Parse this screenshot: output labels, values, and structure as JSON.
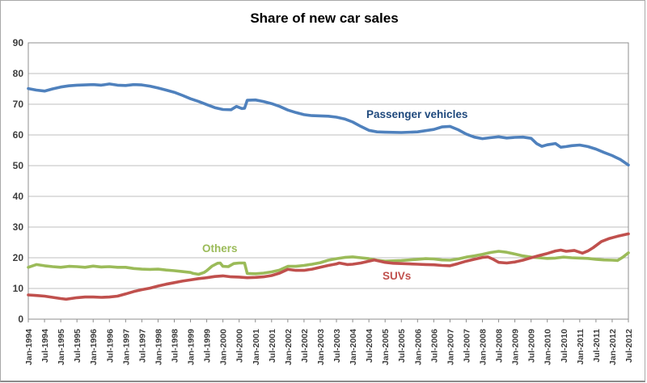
{
  "chart_data": {
    "type": "line",
    "title": "Share of new car sales",
    "xlabel": "",
    "ylabel": "",
    "ylim": [
      0,
      90
    ],
    "y_ticks": [
      0,
      10,
      20,
      30,
      40,
      50,
      60,
      70,
      80,
      90
    ],
    "grid": true,
    "x_unit": "months since Jan-1994",
    "x_range_months": [
      0,
      222
    ],
    "x_tick_step_months": 6,
    "x_tick_labels": [
      "Jan-1994",
      "Jul-1994",
      "Jan-1995",
      "Jul-1995",
      "Jan-1996",
      "Jul-1996",
      "Jan-1997",
      "Jul-1997",
      "Jan-1998",
      "Jul-1998",
      "Jan-1999",
      "Jul-1999",
      "Jan-2000",
      "Jul-2000",
      "Jan-2001",
      "Jul-2001",
      "Jan-2002",
      "Jul-2002",
      "Jan-2003",
      "Jul-2003",
      "Jan-2004",
      "Jul-2004",
      "Jan-2005",
      "Jul-2005",
      "Jan-2006",
      "Jul-2006",
      "Jan-2007",
      "Jul-2007",
      "Jan-2008",
      "Jul-2008",
      "Jan-2009",
      "Jul-2009",
      "Jan-2010",
      "Jul-2010",
      "Jan-2011",
      "Jul-2011",
      "Jan-2012",
      "Jul-2012"
    ],
    "legend_position": "inline-labels-on-chart",
    "series": [
      {
        "name": "Passenger vehicles",
        "color": "#4F81BD",
        "label_color": "#1F497D",
        "points": [
          [
            0,
            75.1
          ],
          [
            3,
            74.6
          ],
          [
            6,
            74.3
          ],
          [
            9,
            75.0
          ],
          [
            12,
            75.6
          ],
          [
            15,
            76.0
          ],
          [
            18,
            76.2
          ],
          [
            21,
            76.3
          ],
          [
            24,
            76.4
          ],
          [
            27,
            76.2
          ],
          [
            30,
            76.6
          ],
          [
            33,
            76.2
          ],
          [
            36,
            76.1
          ],
          [
            39,
            76.4
          ],
          [
            42,
            76.3
          ],
          [
            45,
            75.9
          ],
          [
            48,
            75.3
          ],
          [
            51,
            74.6
          ],
          [
            54,
            73.9
          ],
          [
            57,
            72.9
          ],
          [
            60,
            71.8
          ],
          [
            63,
            70.9
          ],
          [
            66,
            69.9
          ],
          [
            69,
            68.9
          ],
          [
            72,
            68.3
          ],
          [
            75,
            68.2
          ],
          [
            77,
            69.3
          ],
          [
            79,
            68.6
          ],
          [
            80,
            68.7
          ],
          [
            81,
            71.3
          ],
          [
            84,
            71.4
          ],
          [
            87,
            70.9
          ],
          [
            90,
            70.2
          ],
          [
            93,
            69.3
          ],
          [
            96,
            68.1
          ],
          [
            99,
            67.3
          ],
          [
            102,
            66.6
          ],
          [
            105,
            66.3
          ],
          [
            108,
            66.2
          ],
          [
            111,
            66.1
          ],
          [
            114,
            65.8
          ],
          [
            117,
            65.2
          ],
          [
            120,
            64.2
          ],
          [
            123,
            62.8
          ],
          [
            126,
            61.5
          ],
          [
            129,
            61.0
          ],
          [
            132,
            60.9
          ],
          [
            138,
            60.8
          ],
          [
            144,
            61.0
          ],
          [
            150,
            61.8
          ],
          [
            153,
            62.6
          ],
          [
            156,
            62.8
          ],
          [
            159,
            61.7
          ],
          [
            162,
            60.3
          ],
          [
            165,
            59.3
          ],
          [
            168,
            58.8
          ],
          [
            171,
            59.1
          ],
          [
            174,
            59.4
          ],
          [
            177,
            59.0
          ],
          [
            180,
            59.2
          ],
          [
            183,
            59.3
          ],
          [
            186,
            58.9
          ],
          [
            188,
            57.2
          ],
          [
            190,
            56.3
          ],
          [
            192,
            56.8
          ],
          [
            195,
            57.2
          ],
          [
            197,
            56.0
          ],
          [
            199,
            56.2
          ],
          [
            201,
            56.5
          ],
          [
            204,
            56.7
          ],
          [
            207,
            56.2
          ],
          [
            210,
            55.4
          ],
          [
            213,
            54.3
          ],
          [
            216,
            53.3
          ],
          [
            219,
            52.0
          ],
          [
            222,
            50.2
          ]
        ]
      },
      {
        "name": "Others",
        "color": "#9BBB59",
        "label_color": "#9BBB59",
        "points": [
          [
            0,
            16.9
          ],
          [
            3,
            17.8
          ],
          [
            6,
            17.4
          ],
          [
            9,
            17.1
          ],
          [
            12,
            16.9
          ],
          [
            15,
            17.2
          ],
          [
            18,
            17.1
          ],
          [
            21,
            16.9
          ],
          [
            24,
            17.3
          ],
          [
            27,
            17.0
          ],
          [
            30,
            17.1
          ],
          [
            33,
            16.9
          ],
          [
            36,
            16.9
          ],
          [
            39,
            16.5
          ],
          [
            42,
            16.3
          ],
          [
            45,
            16.2
          ],
          [
            48,
            16.3
          ],
          [
            51,
            16.0
          ],
          [
            54,
            15.8
          ],
          [
            57,
            15.5
          ],
          [
            60,
            15.2
          ],
          [
            61,
            14.9
          ],
          [
            63,
            14.6
          ],
          [
            65,
            15.2
          ],
          [
            66,
            15.8
          ],
          [
            68,
            17.3
          ],
          [
            70,
            18.2
          ],
          [
            71,
            18.3
          ],
          [
            72,
            17.2
          ],
          [
            74,
            17.1
          ],
          [
            76,
            18.1
          ],
          [
            78,
            18.3
          ],
          [
            80,
            18.3
          ],
          [
            81,
            14.9
          ],
          [
            84,
            14.8
          ],
          [
            87,
            15.0
          ],
          [
            90,
            15.4
          ],
          [
            93,
            16.0
          ],
          [
            96,
            17.2
          ],
          [
            99,
            17.2
          ],
          [
            102,
            17.5
          ],
          [
            105,
            17.9
          ],
          [
            108,
            18.4
          ],
          [
            111,
            19.2
          ],
          [
            114,
            19.7
          ],
          [
            117,
            20.1
          ],
          [
            120,
            20.3
          ],
          [
            123,
            20.0
          ],
          [
            126,
            19.7
          ],
          [
            129,
            19.2
          ],
          [
            132,
            18.9
          ],
          [
            135,
            19.0
          ],
          [
            138,
            19.1
          ],
          [
            141,
            19.3
          ],
          [
            144,
            19.5
          ],
          [
            147,
            19.7
          ],
          [
            150,
            19.6
          ],
          [
            153,
            19.3
          ],
          [
            156,
            19.2
          ],
          [
            159,
            19.6
          ],
          [
            162,
            20.2
          ],
          [
            165,
            20.6
          ],
          [
            168,
            21.1
          ],
          [
            171,
            21.7
          ],
          [
            174,
            22.1
          ],
          [
            177,
            21.8
          ],
          [
            180,
            21.2
          ],
          [
            183,
            20.6
          ],
          [
            186,
            20.2
          ],
          [
            189,
            20.0
          ],
          [
            192,
            19.8
          ],
          [
            195,
            19.9
          ],
          [
            198,
            20.2
          ],
          [
            201,
            20.0
          ],
          [
            204,
            19.9
          ],
          [
            207,
            19.8
          ],
          [
            210,
            19.5
          ],
          [
            213,
            19.3
          ],
          [
            216,
            19.2
          ],
          [
            218,
            19.1
          ],
          [
            220,
            20.2
          ],
          [
            222,
            21.6
          ]
        ]
      },
      {
        "name": "SUVs",
        "color": "#C0504D",
        "label_color": "#C0504D",
        "points": [
          [
            0,
            7.9
          ],
          [
            3,
            7.7
          ],
          [
            6,
            7.5
          ],
          [
            9,
            7.1
          ],
          [
            12,
            6.7
          ],
          [
            14,
            6.5
          ],
          [
            18,
            7.0
          ],
          [
            21,
            7.2
          ],
          [
            24,
            7.2
          ],
          [
            27,
            7.1
          ],
          [
            30,
            7.2
          ],
          [
            33,
            7.5
          ],
          [
            36,
            8.2
          ],
          [
            39,
            9.0
          ],
          [
            42,
            9.6
          ],
          [
            45,
            10.1
          ],
          [
            48,
            10.8
          ],
          [
            51,
            11.4
          ],
          [
            54,
            11.9
          ],
          [
            57,
            12.4
          ],
          [
            60,
            12.8
          ],
          [
            63,
            13.2
          ],
          [
            66,
            13.5
          ],
          [
            69,
            13.9
          ],
          [
            72,
            14.1
          ],
          [
            75,
            13.8
          ],
          [
            78,
            13.7
          ],
          [
            81,
            13.5
          ],
          [
            84,
            13.6
          ],
          [
            87,
            13.8
          ],
          [
            90,
            14.2
          ],
          [
            93,
            15.0
          ],
          [
            96,
            16.2
          ],
          [
            99,
            15.9
          ],
          [
            102,
            15.9
          ],
          [
            105,
            16.3
          ],
          [
            108,
            16.9
          ],
          [
            111,
            17.5
          ],
          [
            114,
            18.0
          ],
          [
            115,
            18.3
          ],
          [
            118,
            17.8
          ],
          [
            120,
            17.9
          ],
          [
            123,
            18.3
          ],
          [
            126,
            18.9
          ],
          [
            128,
            19.3
          ],
          [
            132,
            18.5
          ],
          [
            135,
            18.2
          ],
          [
            138,
            18.1
          ],
          [
            141,
            18.0
          ],
          [
            144,
            17.9
          ],
          [
            147,
            17.8
          ],
          [
            150,
            17.7
          ],
          [
            153,
            17.5
          ],
          [
            156,
            17.4
          ],
          [
            159,
            18.1
          ],
          [
            162,
            18.9
          ],
          [
            165,
            19.5
          ],
          [
            168,
            20.1
          ],
          [
            170,
            20.3
          ],
          [
            172,
            19.5
          ],
          [
            174,
            18.5
          ],
          [
            177,
            18.3
          ],
          [
            180,
            18.6
          ],
          [
            183,
            19.2
          ],
          [
            186,
            20.0
          ],
          [
            189,
            20.7
          ],
          [
            192,
            21.4
          ],
          [
            195,
            22.2
          ],
          [
            197,
            22.5
          ],
          [
            199,
            22.1
          ],
          [
            202,
            22.4
          ],
          [
            205,
            21.5
          ],
          [
            207,
            22.2
          ],
          [
            209,
            23.3
          ],
          [
            212,
            25.3
          ],
          [
            215,
            26.3
          ],
          [
            218,
            27.0
          ],
          [
            220,
            27.4
          ],
          [
            222,
            27.8
          ]
        ]
      }
    ],
    "colors": {
      "gridline": "#bfbfbf",
      "plot_border": "#8f8f8f",
      "axis_text": "#3d3d3d",
      "title_text": "#000000",
      "background": "#ffffff"
    }
  }
}
